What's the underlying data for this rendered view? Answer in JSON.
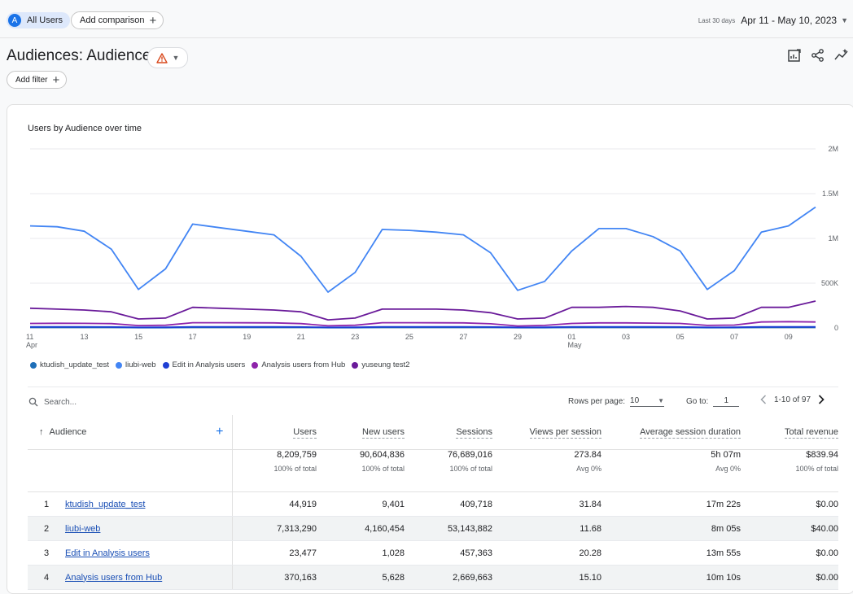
{
  "header": {
    "segment_avatar": "A",
    "segment_label": "All Users",
    "add_comparison_label": "Add comparison",
    "date_hint": "Last 30 days",
    "date_range": "Apr 11 - May 10, 2023"
  },
  "page": {
    "title": "Audiences: Audience",
    "add_filter_label": "Add filter",
    "warning_icon": "warning-triangle-icon",
    "toolbar_icons": [
      "customize-report-icon",
      "share-icon",
      "insights-icon"
    ]
  },
  "chart_data": {
    "type": "line",
    "title": "Users by Audience over time",
    "x": [
      "11 Apr",
      "12",
      "13",
      "14",
      "15",
      "16",
      "17",
      "18",
      "19",
      "20",
      "21",
      "22",
      "23",
      "24",
      "25",
      "26",
      "27",
      "28",
      "29",
      "30",
      "01 May",
      "02",
      "03",
      "04",
      "05",
      "06",
      "07",
      "08",
      "09",
      "10"
    ],
    "xtick_labels": [
      {
        "main": "11",
        "sub": "Apr",
        "index": 0
      },
      {
        "main": "13",
        "sub": "",
        "index": 2
      },
      {
        "main": "15",
        "sub": "",
        "index": 4
      },
      {
        "main": "17",
        "sub": "",
        "index": 6
      },
      {
        "main": "19",
        "sub": "",
        "index": 8
      },
      {
        "main": "21",
        "sub": "",
        "index": 10
      },
      {
        "main": "23",
        "sub": "",
        "index": 12
      },
      {
        "main": "25",
        "sub": "",
        "index": 14
      },
      {
        "main": "27",
        "sub": "",
        "index": 16
      },
      {
        "main": "29",
        "sub": "",
        "index": 18
      },
      {
        "main": "01",
        "sub": "May",
        "index": 20
      },
      {
        "main": "03",
        "sub": "",
        "index": 22
      },
      {
        "main": "05",
        "sub": "",
        "index": 24
      },
      {
        "main": "07",
        "sub": "",
        "index": 26
      },
      {
        "main": "09",
        "sub": "",
        "index": 28
      }
    ],
    "ylim": [
      0,
      2000000
    ],
    "yticks": [
      0,
      500000,
      1000000,
      1500000,
      2000000
    ],
    "ytick_labels": [
      "0",
      "500K",
      "1M",
      "1.5M",
      "2M"
    ],
    "axis_position": "right",
    "grid": true,
    "series": [
      {
        "name": "ktudish_update_test",
        "color": "#1e6fb8",
        "values": [
          5000,
          5000,
          5000,
          5000,
          3000,
          3000,
          5000,
          5000,
          5000,
          5000,
          5000,
          3000,
          3000,
          5000,
          5000,
          5000,
          5000,
          5000,
          3000,
          3000,
          5000,
          5000,
          5000,
          5000,
          5000,
          3000,
          3000,
          5000,
          5000,
          5000
        ]
      },
      {
        "name": "liubi-web",
        "color": "#4285f4",
        "values": [
          1140000,
          1130000,
          1080000,
          880000,
          430000,
          660000,
          1160000,
          1120000,
          1080000,
          1040000,
          800000,
          400000,
          620000,
          1100000,
          1090000,
          1070000,
          1040000,
          840000,
          420000,
          520000,
          860000,
          1110000,
          1110000,
          1020000,
          860000,
          430000,
          640000,
          1070000,
          1140000,
          1350000
        ]
      },
      {
        "name": "Edit in Analysis users",
        "color": "#1f3fd4",
        "values": [
          12000,
          12000,
          12000,
          11000,
          6000,
          7000,
          12000,
          12000,
          12000,
          12000,
          11000,
          6000,
          7000,
          12000,
          12000,
          12000,
          12000,
          11000,
          6000,
          7000,
          12000,
          12000,
          12000,
          12000,
          11000,
          6000,
          7000,
          12000,
          12000,
          12000
        ]
      },
      {
        "name": "Analysis users from Hub",
        "color": "#8e24aa",
        "values": [
          50000,
          52000,
          51000,
          48000,
          26000,
          30000,
          58000,
          58000,
          57000,
          56000,
          48000,
          24000,
          30000,
          58000,
          58000,
          57000,
          56000,
          46000,
          22000,
          28000,
          50000,
          56000,
          56000,
          54000,
          50000,
          28000,
          32000,
          66000,
          70000,
          66000
        ]
      },
      {
        "name": "yuseung test2",
        "color": "#6a1b9a",
        "values": [
          220000,
          210000,
          200000,
          180000,
          100000,
          110000,
          230000,
          220000,
          210000,
          200000,
          180000,
          90000,
          110000,
          210000,
          210000,
          210000,
          200000,
          170000,
          100000,
          110000,
          230000,
          230000,
          240000,
          230000,
          190000,
          100000,
          110000,
          230000,
          230000,
          300000
        ]
      }
    ]
  },
  "table_controls": {
    "search_placeholder": "Search...",
    "rows_per_page_label": "Rows per page:",
    "rows_per_page_value": "10",
    "goto_label": "Go to:",
    "goto_value": "1",
    "range_text": "1-10 of 97"
  },
  "table": {
    "dimension_header": "Audience",
    "columns": [
      "Users",
      "New users",
      "Sessions",
      "Views per session",
      "Average session duration",
      "Total revenue"
    ],
    "totals": [
      {
        "value": "8,209,759",
        "sub": "100% of total"
      },
      {
        "value": "90,604,836",
        "sub": "100% of total"
      },
      {
        "value": "76,689,016",
        "sub": "100% of total"
      },
      {
        "value": "273.84",
        "sub": "Avg 0%"
      },
      {
        "value": "5h 07m",
        "sub": "Avg 0%"
      },
      {
        "value": "$839.94",
        "sub": "100% of total"
      }
    ],
    "rows": [
      {
        "index": "1",
        "audience": "ktudish_update_test",
        "values": [
          "44,919",
          "9,401",
          "409,718",
          "31.84",
          "17m 22s",
          "$0.00"
        ]
      },
      {
        "index": "2",
        "audience": "liubi-web",
        "values": [
          "7,313,290",
          "4,160,454",
          "53,143,882",
          "11.68",
          "8m 05s",
          "$40.00"
        ]
      },
      {
        "index": "3",
        "audience": "Edit in Analysis users",
        "values": [
          "23,477",
          "1,028",
          "457,363",
          "20.28",
          "13m 55s",
          "$0.00"
        ]
      },
      {
        "index": "4",
        "audience": "Analysis users from Hub",
        "values": [
          "370,163",
          "5,628",
          "2,669,663",
          "15.10",
          "10m 10s",
          "$0.00"
        ]
      }
    ]
  }
}
